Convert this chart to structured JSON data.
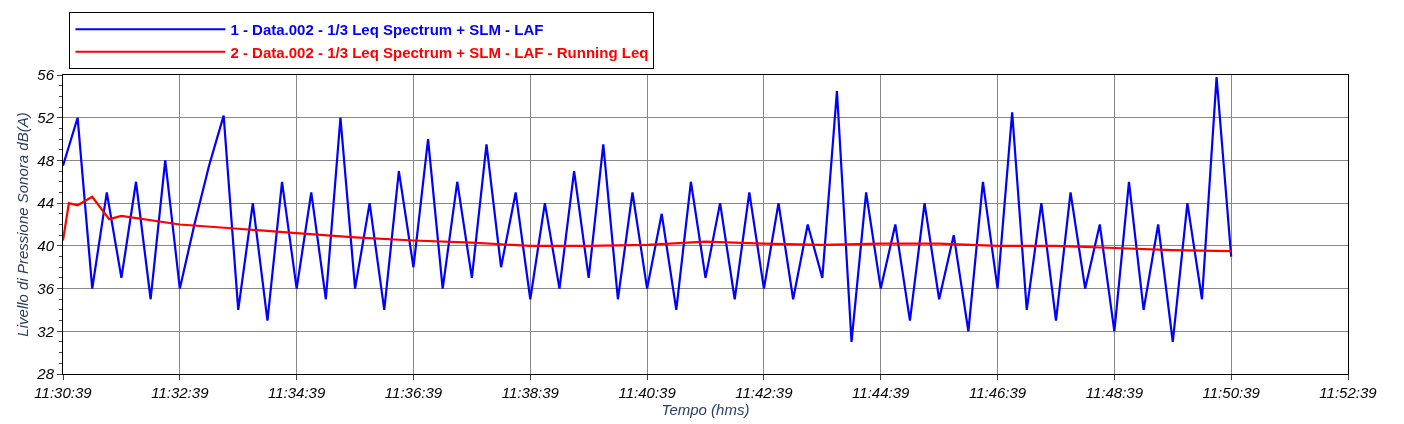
{
  "chart_data": {
    "type": "line",
    "xlabel": "Tempo (hms)",
    "ylabel": "Livello di Pressione Sonora dB(A)",
    "xlim": [
      11.51083,
      11.8775
    ],
    "xticks": [
      {
        "value": 11.51083,
        "label": "11:30:39"
      },
      {
        "value": 11.54417,
        "label": "11:32:39"
      },
      {
        "value": 11.5775,
        "label": "11:34:39"
      },
      {
        "value": 11.61083,
        "label": "11:36:39"
      },
      {
        "value": 11.64417,
        "label": "11:38:39"
      },
      {
        "value": 11.6775,
        "label": "11:40:39"
      },
      {
        "value": 11.71083,
        "label": "11:42:39"
      },
      {
        "value": 11.74417,
        "label": "11:44:39"
      },
      {
        "value": 11.7775,
        "label": "11:46:39"
      },
      {
        "value": 11.81083,
        "label": "11:48:39"
      },
      {
        "value": 11.84417,
        "label": "11:50:39"
      },
      {
        "value": 11.8775,
        "label": "11:52:39"
      }
    ],
    "ylim": [
      28,
      56
    ],
    "yticks": [
      28,
      32,
      36,
      40,
      44,
      48,
      52,
      56
    ],
    "grid": true,
    "legend": "top",
    "line_style": "solid",
    "marker": "none",
    "series": [
      {
        "name": "1 - Data.002 - 1/3 Leq Spectrum + SLM - LAF",
        "color": "#0000ff",
        "x": [
          11.51083,
          11.515,
          11.51917,
          11.52333,
          11.5275,
          11.53167,
          11.53583,
          11.54,
          11.54417,
          11.54833,
          11.5525,
          11.55667,
          11.56083,
          11.565,
          11.56917,
          11.57333,
          11.5775,
          11.58167,
          11.58583,
          11.59,
          11.59417,
          11.59833,
          11.6025,
          11.60667,
          11.61083,
          11.615,
          11.61917,
          11.62333,
          11.6275,
          11.63167,
          11.63583,
          11.64,
          11.64417,
          11.64833,
          11.6525,
          11.65667,
          11.66083,
          11.665,
          11.66917,
          11.67333,
          11.6775,
          11.68167,
          11.68583,
          11.69,
          11.69417,
          11.69833,
          11.7025,
          11.70667,
          11.71083,
          11.715,
          11.71917,
          11.72333,
          11.7275,
          11.73167,
          11.73583,
          11.74,
          11.74417,
          11.74833,
          11.7525,
          11.75667,
          11.76083,
          11.765,
          11.76917,
          11.77333,
          11.7775,
          11.78167,
          11.78583,
          11.79,
          11.79417,
          11.79833,
          11.8025,
          11.80667,
          11.81083,
          11.815,
          11.81917,
          11.82333,
          11.8275,
          11.83167,
          11.83583,
          11.84,
          11.84417
        ],
        "values": [
          47.5,
          52,
          36,
          45,
          37,
          46,
          35,
          48,
          36,
          42,
          47.5,
          52.2,
          34,
          44,
          33,
          46,
          36,
          45,
          35,
          52,
          36,
          44,
          34,
          47,
          38,
          50,
          36,
          46,
          37,
          49.5,
          38,
          45,
          35,
          44,
          36,
          47,
          37,
          49.5,
          35,
          45,
          36,
          43,
          34,
          46,
          37,
          44,
          35,
          45,
          36,
          44,
          35,
          42,
          37,
          54.5,
          31,
          45,
          36,
          42,
          33,
          44,
          35,
          41,
          32,
          46,
          36,
          52.5,
          34,
          44,
          33,
          45,
          36,
          42,
          32,
          46,
          34,
          42,
          31,
          44,
          35,
          55.8,
          39
        ]
      },
      {
        "name": "2 - Data.002 - 1/3 Leq Spectrum + SLM - LAF - Running Leq",
        "color": "#ff0000",
        "x": [
          11.51083,
          11.5125,
          11.515,
          11.51917,
          11.524,
          11.5275,
          11.54417,
          11.56083,
          11.5775,
          11.59417,
          11.61083,
          11.6275,
          11.64417,
          11.66083,
          11.6775,
          11.69417,
          11.71083,
          11.7275,
          11.74417,
          11.76083,
          11.7775,
          11.79417,
          11.81083,
          11.8275,
          11.84417
        ],
        "values": [
          40.5,
          44,
          43.8,
          44.6,
          42.5,
          42.8,
          42,
          41.6,
          41.2,
          40.8,
          40.5,
          40.3,
          40,
          40,
          40.1,
          40.4,
          40.2,
          40.1,
          40.2,
          40.2,
          40,
          40,
          39.8,
          39.6,
          39.5
        ]
      }
    ]
  }
}
